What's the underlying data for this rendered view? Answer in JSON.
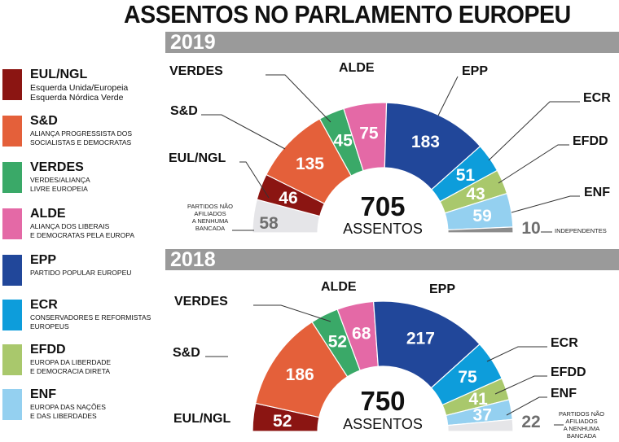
{
  "title": "ASSENTOS NO PARLAMENTO EUROPEU",
  "legend": [
    {
      "name": "EUL/NGL",
      "desc": "Esquerda Unida/Europeia\nEsquerda Nórdica Verde",
      "color": "#8b1512"
    },
    {
      "name": "S&D",
      "desc": "ALIANÇA PROGRESSISTA DOS\nSOCIALISTAS E DEMOCRATAS",
      "color": "#e4603a"
    },
    {
      "name": "VERDES",
      "desc": "VERDES/ALIANÇA\nLIVRE EUROPEIA",
      "color": "#3aa968"
    },
    {
      "name": "ALDE",
      "desc": "ALIANÇA DOS LIBERAIS\nE DEMOCRATAS PELA EUROPA",
      "color": "#e469a6"
    },
    {
      "name": "EPP",
      "desc": "PARTIDO POPULAR EUROPEU",
      "color": "#21479a"
    },
    {
      "name": "ECR",
      "desc": "CONSERVADORES E REFORMISTAS\nEUROPEUS",
      "color": "#0d9ddb"
    },
    {
      "name": "EFDD",
      "desc": "EUROPA DA LIBERDADE\nE DEMOCRACIA DIRETA",
      "color": "#a9c86c"
    },
    {
      "name": "ENF",
      "desc": "EUROPA DAS NAÇÕES\nE DAS LIBERDADES",
      "color": "#94d0f0"
    }
  ],
  "chart_data": [
    {
      "type": "pie",
      "year": "2019",
      "total": "705",
      "total_label": "ASSENTOS",
      "slices": [
        {
          "name": "PARTIDOS NÃO AFILIADOS A NENHUMA BANCADA",
          "value": 58,
          "color": "#e5e5e8",
          "label_color": "#6e6e6e"
        },
        {
          "name": "EUL/NGL",
          "value": 46,
          "color": "#8b1512",
          "label_color": "#ffffff"
        },
        {
          "name": "S&D",
          "value": 135,
          "color": "#e4603a",
          "label_color": "#ffffff"
        },
        {
          "name": "VERDES",
          "value": 45,
          "color": "#3aa968",
          "label_color": "#ffffff"
        },
        {
          "name": "ALDE",
          "value": 75,
          "color": "#e469a6",
          "label_color": "#ffffff"
        },
        {
          "name": "EPP",
          "value": 183,
          "color": "#21479a",
          "label_color": "#ffffff"
        },
        {
          "name": "ECR",
          "value": 51,
          "color": "#0d9ddb",
          "label_color": "#ffffff"
        },
        {
          "name": "EFDD",
          "value": 43,
          "color": "#a9c86c",
          "label_color": "#ffffff"
        },
        {
          "name": "ENF",
          "value": 59,
          "color": "#94d0f0",
          "label_color": "#ffffff"
        },
        {
          "name": "INDEPENDENTES",
          "value": 10,
          "color": "#8c8c8c",
          "label_color": "#6e6e6e"
        }
      ]
    },
    {
      "type": "pie",
      "year": "2018",
      "total": "750",
      "total_label": "ASSENTOS",
      "slices": [
        {
          "name": "EUL/NGL",
          "value": 52,
          "color": "#8b1512",
          "label_color": "#ffffff"
        },
        {
          "name": "S&D",
          "value": 186,
          "color": "#e4603a",
          "label_color": "#ffffff"
        },
        {
          "name": "VERDES",
          "value": 52,
          "color": "#3aa968",
          "label_color": "#ffffff"
        },
        {
          "name": "ALDE",
          "value": 68,
          "color": "#e469a6",
          "label_color": "#ffffff"
        },
        {
          "name": "EPP",
          "value": 217,
          "color": "#21479a",
          "label_color": "#ffffff"
        },
        {
          "name": "ECR",
          "value": 75,
          "color": "#0d9ddb",
          "label_color": "#ffffff"
        },
        {
          "name": "EFDD",
          "value": 41,
          "color": "#a9c86c",
          "label_color": "#ffffff"
        },
        {
          "name": "ENF",
          "value": 37,
          "color": "#94d0f0",
          "label_color": "#ffffff"
        },
        {
          "name": "PARTIDOS NÃO AFILIADOS A NENHUMA BANCADA",
          "value": 22,
          "color": "#e5e5e8",
          "label_color": "#6e6e6e"
        }
      ]
    }
  ]
}
